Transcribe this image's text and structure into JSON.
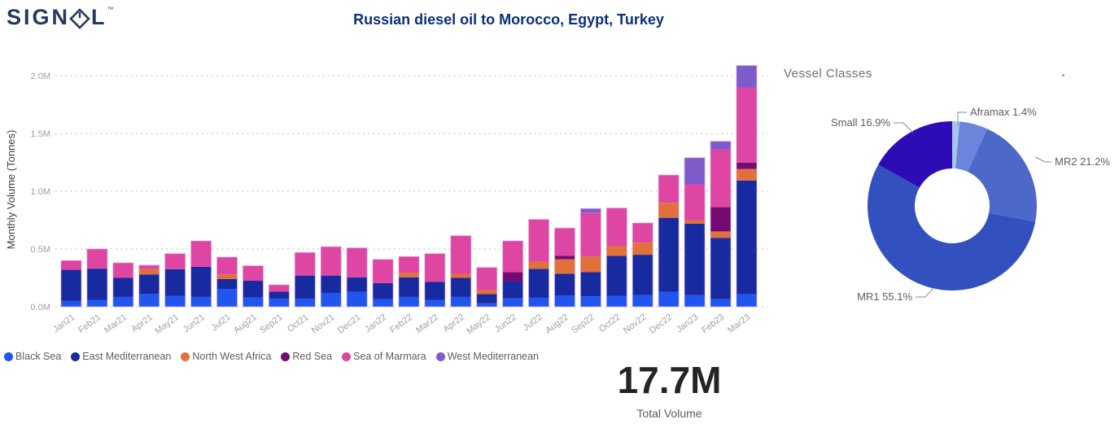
{
  "header": {
    "logo_prefix": "SIGN",
    "logo_suffix": "L",
    "logo_tm": "™",
    "title": "Russian diesel oil to Morocco, Egypt, Turkey"
  },
  "card": {
    "value": "17.7M",
    "label": "Total Volume"
  },
  "donut": {
    "title": "Vessel Classes"
  },
  "colors": {
    "title": "#0B3078",
    "axis_tick": "#A0A0A0",
    "axis_title": "#3F3F3F",
    "gridline": "#CACACA",
    "legend_text": "#605E5C",
    "callout_text": "#5E5E5E",
    "bar_outline": "#D8A8E6"
  },
  "chart_data": [
    {
      "type": "bar",
      "stacked": true,
      "ylabel": "Monthly Volume (Tonnes)",
      "unit": "million tonnes",
      "ylim": [
        0,
        2.1
      ],
      "grid": "dotted-horizontal",
      "legend_position": "bottom-left",
      "yticks": [
        "0.0M",
        "0.5M",
        "1.0M",
        "1.5M",
        "2.0M"
      ],
      "ytick_values": [
        0,
        0.5,
        1.0,
        1.5,
        2.0
      ],
      "categories": [
        "Jan21",
        "Feb21",
        "Mar21",
        "Apr21",
        "May21",
        "Jun21",
        "Jul21",
        "Aug21",
        "Sep21",
        "Oct21",
        "Nov21",
        "Dec21",
        "Jan22",
        "Feb22",
        "Mar22",
        "Apr22",
        "May22",
        "Jun22",
        "Jul22",
        "Aug22",
        "Sep22",
        "Oct22",
        "Nov22",
        "Dec22",
        "Jan23",
        "Feb23",
        "Mar23"
      ],
      "series": [
        {
          "name": "Black Sea",
          "color": "#2155F0",
          "values": [
            0.05,
            0.06,
            0.085,
            0.11,
            0.095,
            0.085,
            0.155,
            0.08,
            0.07,
            0.07,
            0.12,
            0.13,
            0.065,
            0.085,
            0.06,
            0.085,
            0.03,
            0.073,
            0.078,
            0.096,
            0.09,
            0.095,
            0.1,
            0.13,
            0.1,
            0.066,
            0.108
          ]
        },
        {
          "name": "East Mediterranean",
          "color": "#182A9F",
          "values": [
            0.27,
            0.27,
            0.165,
            0.17,
            0.23,
            0.26,
            0.085,
            0.145,
            0.06,
            0.2,
            0.15,
            0.125,
            0.14,
            0.17,
            0.155,
            0.165,
            0.08,
            0.145,
            0.25,
            0.19,
            0.21,
            0.345,
            0.35,
            0.64,
            0.62,
            0.53,
            0.985
          ]
        },
        {
          "name": "North West Africa",
          "color": "#E2703A",
          "values": [
            0,
            0,
            0,
            0.047,
            0,
            0,
            0.04,
            0,
            0,
            0,
            0,
            0,
            0,
            0.04,
            0,
            0.035,
            0.035,
            0,
            0.063,
            0.125,
            0.135,
            0.085,
            0.105,
            0.13,
            0.03,
            0.056,
            0.1
          ]
        },
        {
          "name": "Red Sea",
          "color": "#730B72",
          "values": [
            0,
            0,
            0,
            0,
            0,
            0,
            0,
            0,
            0,
            0,
            0,
            0,
            0,
            0,
            0,
            0,
            0,
            0.082,
            0,
            0.03,
            0,
            0,
            0,
            0,
            0,
            0.21,
            0.055
          ]
        },
        {
          "name": "Sea of Marmara",
          "color": "#DF45A3",
          "values": [
            0.08,
            0.17,
            0.13,
            0.033,
            0.135,
            0.225,
            0.15,
            0.13,
            0.06,
            0.2,
            0.25,
            0.255,
            0.205,
            0.14,
            0.245,
            0.33,
            0.195,
            0.27,
            0.365,
            0.24,
            0.38,
            0.33,
            0.17,
            0.24,
            0.31,
            0.5,
            0.65
          ]
        },
        {
          "name": "West Mediterranean",
          "color": "#7E5BCB",
          "values": [
            0,
            0,
            0,
            0,
            0,
            0,
            0,
            0,
            0,
            0,
            0,
            0,
            0,
            0,
            0,
            0,
            0,
            0,
            0,
            0,
            0.035,
            0,
            0,
            0,
            0.23,
            0.07,
            0.19
          ]
        }
      ]
    },
    {
      "type": "pie",
      "donut": true,
      "title": "Vessel Classes",
      "start_angle_deg": 0,
      "direction": "clockwise",
      "slices": [
        {
          "label": "Aframax",
          "pct": 1.4,
          "color": "#A8C5EE",
          "callout": "Aframax 1.4%"
        },
        {
          "label": "",
          "pct": 5.4,
          "color": "#6B85DC",
          "callout": ""
        },
        {
          "label": "MR2",
          "pct": 21.2,
          "color": "#4C68C8",
          "callout": "MR2 21.2%"
        },
        {
          "label": "MR1",
          "pct": 55.1,
          "color": "#3351BE",
          "callout": "MR1 55.1%"
        },
        {
          "label": "Small",
          "pct": 16.9,
          "color": "#2D0CB5",
          "callout": "Small 16.9%"
        }
      ]
    }
  ]
}
